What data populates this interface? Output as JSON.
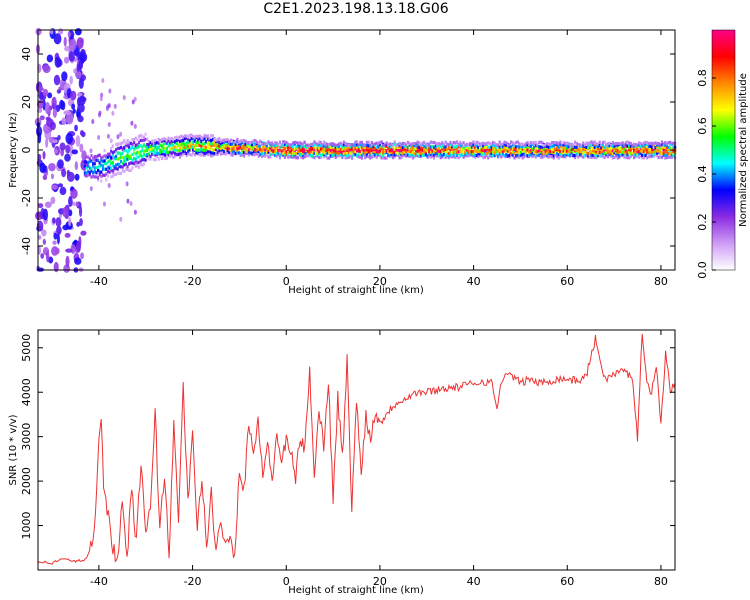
{
  "title": "C2E1.2023.198.13.18.G06",
  "colors": {
    "snr_line": "#ee3333",
    "axis": "#000000",
    "colormap": [
      "#ffffff",
      "#cf9cf5",
      "#8a2be2",
      "#0000ff",
      "#00ffff",
      "#00ff00",
      "#ffff00",
      "#ff8800",
      "#ff0000",
      "#ff0088"
    ]
  },
  "chart_data": [
    {
      "type": "heatmap",
      "panel": "top",
      "xlabel": "Height of straight line (km)",
      "ylabel": "Frequency (Hz)",
      "xlim": [
        -53,
        83
      ],
      "ylim": [
        -50,
        50
      ],
      "x_ticks": [
        -40,
        -20,
        0,
        20,
        40,
        60,
        80
      ],
      "y_ticks": [
        -40,
        -20,
        0,
        20,
        40
      ],
      "colorbar": {
        "label": "Normalized spectral amplitude",
        "range": [
          0,
          1
        ],
        "ticks": [
          "0.0",
          "0.2",
          "0.4",
          "0.6",
          "0.8"
        ]
      },
      "ridge": {
        "note_x": [
          -40,
          -35,
          -30,
          -20,
          -10,
          0,
          20,
          40,
          60,
          80
        ],
        "center_hz": [
          -7,
          -3,
          0,
          2,
          1,
          0,
          0,
          0,
          0,
          0
        ],
        "peak_amplitude": [
          0.45,
          0.6,
          0.6,
          0.75,
          0.9,
          1.0,
          1.0,
          0.95,
          0.9,
          0.95
        ]
      }
    },
    {
      "type": "line",
      "panel": "bottom",
      "xlabel": "Height of straight line (km)",
      "ylabel": "SNR (10 * v/v)",
      "xlim": [
        -53,
        83
      ],
      "ylim": [
        0,
        5400
      ],
      "x_ticks": [
        -40,
        -20,
        0,
        20,
        40,
        60,
        80
      ],
      "y_ticks": [
        1000,
        2000,
        3000,
        4000,
        5000
      ],
      "series": [
        {
          "x": [
            -53,
            -50,
            -48,
            -45,
            -43,
            -42,
            -41,
            -40,
            -39.5,
            -39,
            -38,
            -37,
            -36,
            -35,
            -34,
            -33,
            -32,
            -31,
            -30,
            -29,
            -28,
            -27,
            -26,
            -25,
            -24,
            -23,
            -22,
            -21,
            -20,
            -19,
            -18,
            -17,
            -16,
            -15,
            -14,
            -13,
            -12,
            -11,
            -10,
            -9,
            -8,
            -7,
            -6,
            -5,
            -4,
            -3,
            -2,
            -1,
            0,
            1,
            2,
            3,
            4,
            5,
            6,
            7,
            8,
            9,
            10,
            11,
            12,
            13,
            14,
            15,
            16,
            17,
            18,
            19,
            20,
            22,
            24,
            26,
            28,
            30,
            32,
            34,
            36,
            38,
            40,
            42,
            44,
            45,
            46,
            48,
            50,
            52,
            54,
            56,
            58,
            60,
            62,
            64,
            66,
            68,
            70,
            72,
            74,
            75,
            76,
            77,
            78,
            79,
            80,
            81,
            82,
            83
          ],
          "y": [
            200,
            150,
            250,
            200,
            220,
            400,
            800,
            3000,
            3500,
            2000,
            1200,
            500,
            200,
            1500,
            300,
            1800,
            600,
            2500,
            700,
            1400,
            3600,
            900,
            2200,
            400,
            3200,
            1100,
            4200,
            1500,
            3000,
            1000,
            2000,
            600,
            1700,
            300,
            1200,
            500,
            900,
            250,
            2300,
            1800,
            3400,
            2600,
            3300,
            2200,
            2800,
            2000,
            3100,
            2400,
            2900,
            2600,
            2100,
            3000,
            2700,
            4500,
            2200,
            3600,
            2800,
            4300,
            1600,
            3900,
            2500,
            4700,
            1400,
            3800,
            2200,
            3500,
            2900,
            3600,
            3300,
            3600,
            3800,
            3900,
            4000,
            4000,
            4050,
            4100,
            4100,
            4150,
            4200,
            4250,
            4200,
            3600,
            4300,
            4400,
            4200,
            4300,
            4200,
            4250,
            4300,
            4300,
            4250,
            4350,
            5200,
            4300,
            4400,
            4500,
            4300,
            2900,
            5400,
            4200,
            4000,
            4600,
            3300,
            4900,
            4000,
            4200
          ]
        }
      ]
    }
  ]
}
